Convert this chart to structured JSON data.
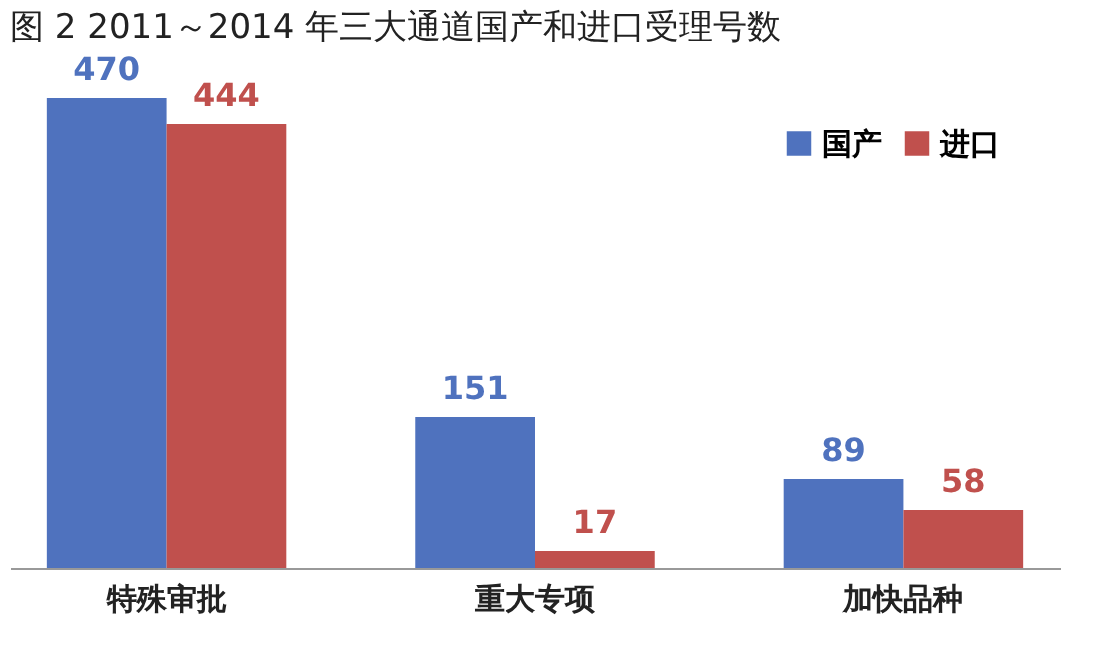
{
  "chart_data": {
    "type": "bar",
    "title": "图 2  2011～2014 年三大通道国产和进口受理号数",
    "categories": [
      "特殊审批",
      "重大专项",
      "加快品种"
    ],
    "series": [
      {
        "name": "国产",
        "color": "#4f72be",
        "values": [
          470,
          151,
          89
        ]
      },
      {
        "name": "进口",
        "color": "#c0504d",
        "values": [
          444,
          17,
          58
        ]
      }
    ],
    "data_labels": true,
    "legend": "top right"
  }
}
